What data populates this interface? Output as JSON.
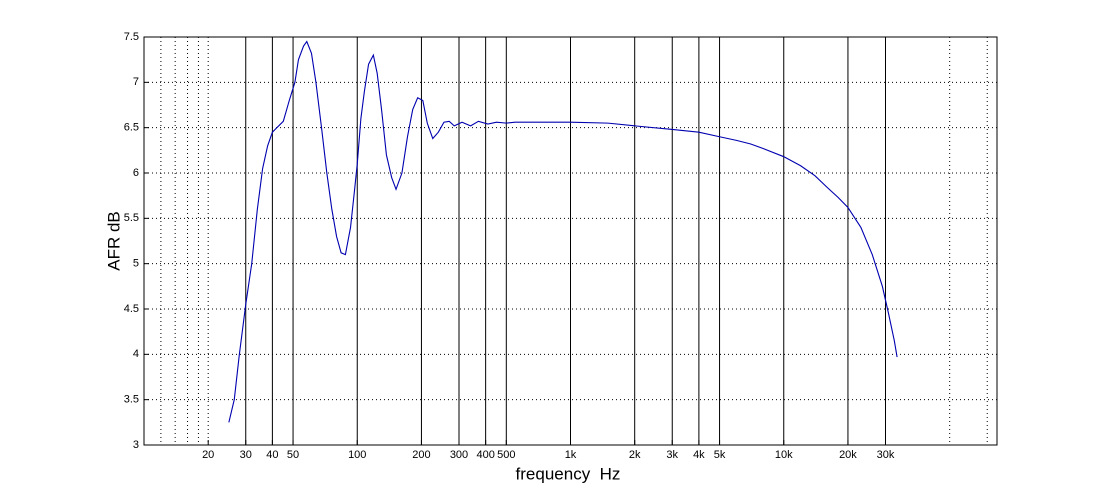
{
  "chart_data": {
    "type": "line",
    "xlabel": "frequency  Hz",
    "ylabel": "AFR dB",
    "color": "#0000b0",
    "xscale": "log",
    "grid": true,
    "xlim": [
      10,
      100000
    ],
    "ylim": [
      3,
      7.5
    ],
    "yticks": [
      3,
      3.5,
      4,
      4.5,
      5,
      5.5,
      6,
      6.5,
      7,
      7.5
    ],
    "xticks": [
      20,
      30,
      40,
      50,
      100,
      200,
      300,
      400,
      500,
      {
        "value": 1000,
        "label": "1k"
      },
      {
        "value": 2000,
        "label": "2k"
      },
      {
        "value": 3000,
        "label": "3k"
      },
      {
        "value": 4000,
        "label": "4k"
      },
      {
        "value": 5000,
        "label": "5k"
      },
      {
        "value": 10000,
        "label": "10k"
      },
      {
        "value": 20000,
        "label": "20k"
      },
      {
        "value": 30000,
        "label": "30k"
      }
    ],
    "xgrid_solid": [
      30,
      40,
      50,
      100,
      200,
      300,
      400,
      500,
      1000,
      2000,
      3000,
      4000,
      5000,
      10000,
      20000,
      30000
    ],
    "xgrid_dotted": [
      12,
      14,
      16,
      18,
      20,
      60000,
      90000
    ],
    "x": [
      25,
      26.5,
      28,
      30,
      32,
      34,
      36,
      38,
      40,
      42,
      45,
      48,
      51,
      53,
      56,
      58,
      61,
      64,
      68,
      72,
      76,
      80,
      84,
      88,
      93,
      97,
      100,
      104,
      108,
      113,
      119,
      124,
      130,
      137,
      145,
      152,
      162,
      172,
      182,
      192,
      203,
      213,
      226,
      240,
      255,
      270,
      285,
      310,
      340,
      370,
      410,
      450,
      500,
      550,
      700,
      1000,
      1500,
      2000,
      3000,
      4000,
      5000,
      6000,
      7000,
      8000,
      10000,
      12000,
      14000,
      16000,
      18000,
      20000,
      23000,
      26000,
      29000,
      31000,
      33000,
      34000
    ],
    "values": [
      3.25,
      3.5,
      4.0,
      4.55,
      5.0,
      5.6,
      6.05,
      6.3,
      6.45,
      6.5,
      6.57,
      6.8,
      7.0,
      7.25,
      7.4,
      7.45,
      7.32,
      7.0,
      6.5,
      6.0,
      5.6,
      5.3,
      5.12,
      5.1,
      5.4,
      5.8,
      6.1,
      6.6,
      6.9,
      7.2,
      7.3,
      7.1,
      6.7,
      6.2,
      5.95,
      5.82,
      6.0,
      6.4,
      6.7,
      6.83,
      6.8,
      6.55,
      6.38,
      6.45,
      6.56,
      6.57,
      6.52,
      6.56,
      6.52,
      6.57,
      6.54,
      6.56,
      6.55,
      6.56,
      6.56,
      6.56,
      6.55,
      6.52,
      6.48,
      6.45,
      6.4,
      6.36,
      6.32,
      6.27,
      6.18,
      6.08,
      5.97,
      5.84,
      5.73,
      5.62,
      5.4,
      5.1,
      4.75,
      4.45,
      4.15,
      3.97
    ]
  }
}
